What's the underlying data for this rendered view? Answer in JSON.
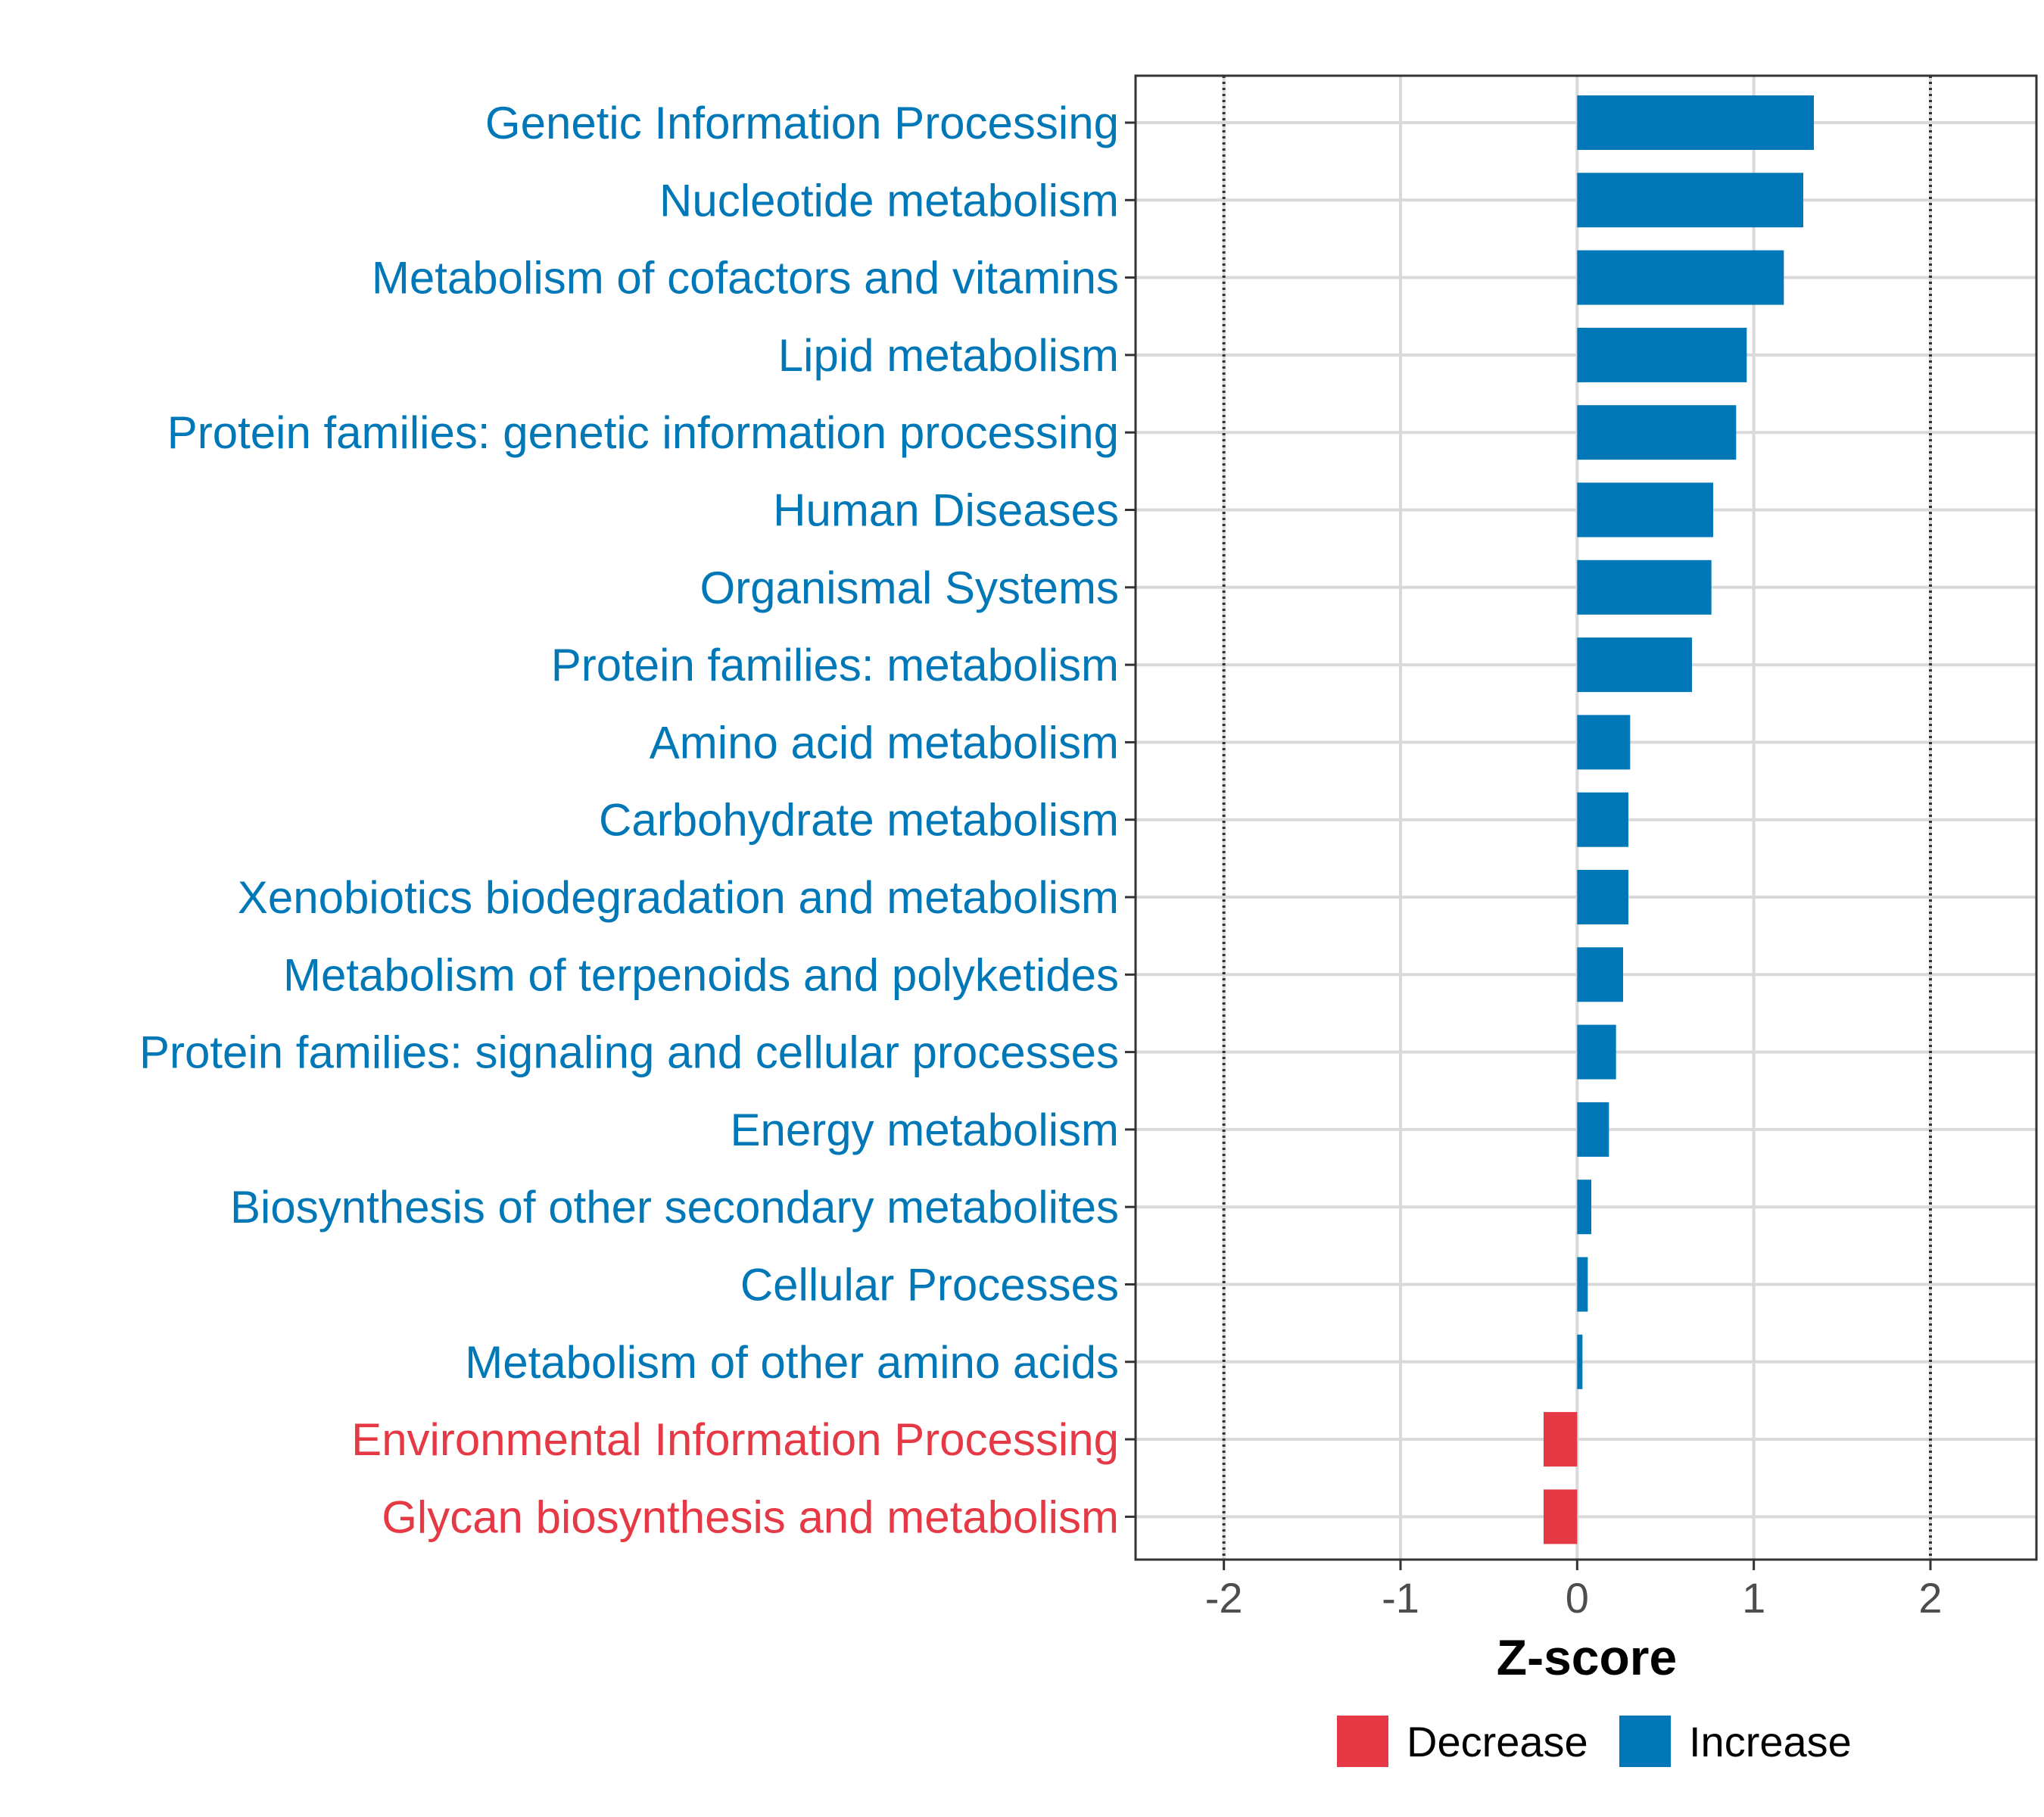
{
  "chart_data": {
    "type": "bar",
    "orientation": "horizontal",
    "xlabel": "Z-score",
    "ylabel": "",
    "xlim": [
      -2.5,
      2.6
    ],
    "xticks": [
      -2,
      -1,
      0,
      1,
      2
    ],
    "xtick_labels": [
      "-2",
      "-1",
      "0",
      "1",
      "2"
    ],
    "reference_lines": [
      -2,
      2
    ],
    "grid": true,
    "legend_position": "bottom",
    "categories": [
      "Genetic Information Processing",
      "Nucleotide metabolism",
      "Metabolism of cofactors and vitamins",
      "Lipid metabolism",
      "Protein families: genetic information processing",
      "Human Diseases",
      "Organismal Systems",
      "Protein families: metabolism",
      "Amino acid metabolism",
      "Carbohydrate metabolism",
      "Xenobiotics biodegradation and metabolism",
      "Metabolism of terpenoids and polyketides",
      "Protein families: signaling and cellular processes",
      "Energy metabolism",
      "Biosynthesis of other secondary metabolites",
      "Cellular Processes",
      "Metabolism of other amino acids",
      "Environmental Information Processing",
      "Glycan biosynthesis and metabolism"
    ],
    "values": [
      1.34,
      1.28,
      1.17,
      0.96,
      0.9,
      0.77,
      0.76,
      0.65,
      0.3,
      0.29,
      0.29,
      0.26,
      0.22,
      0.18,
      0.08,
      0.06,
      0.03,
      -0.19,
      -0.19
    ],
    "groups": [
      "Increase",
      "Increase",
      "Increase",
      "Increase",
      "Increase",
      "Increase",
      "Increase",
      "Increase",
      "Increase",
      "Increase",
      "Increase",
      "Increase",
      "Increase",
      "Increase",
      "Increase",
      "Increase",
      "Increase",
      "Decrease",
      "Decrease"
    ],
    "legend": [
      {
        "name": "Decrease",
        "color": "#e63946"
      },
      {
        "name": "Increase",
        "color": "#0077b6"
      }
    ]
  }
}
